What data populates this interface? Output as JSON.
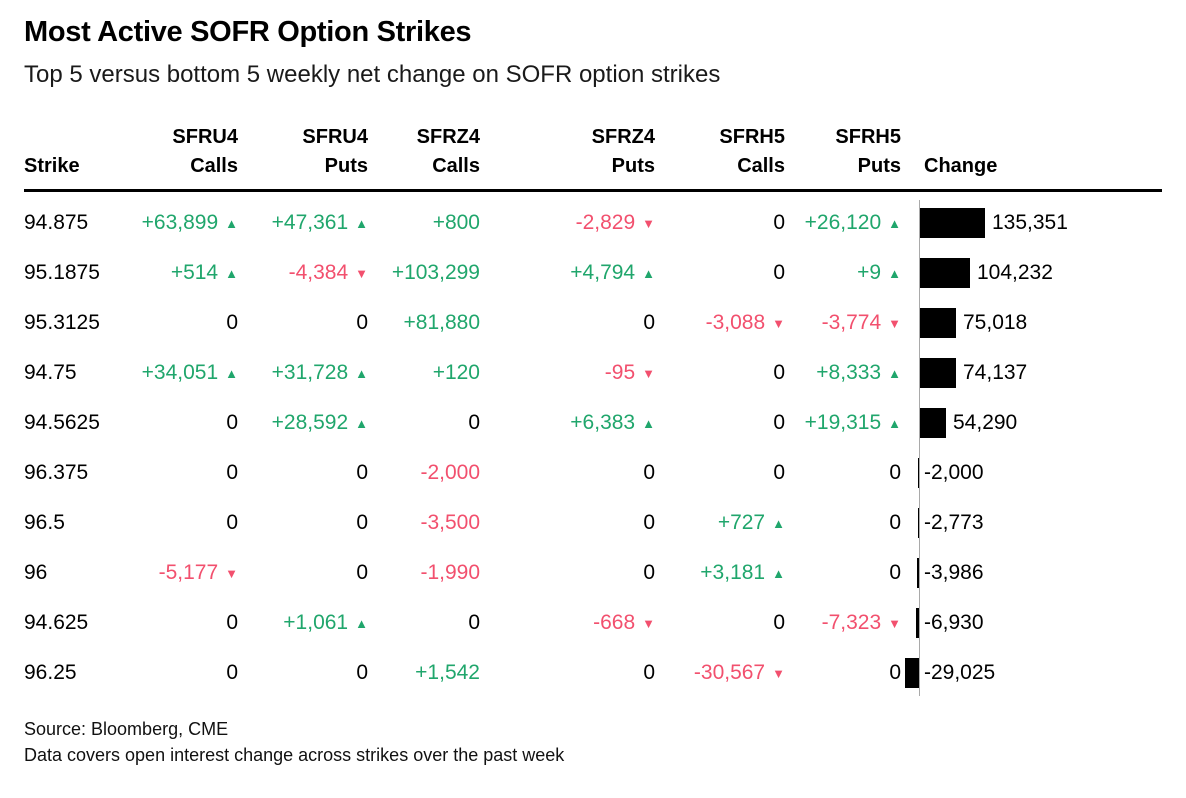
{
  "header": {
    "title": "Most Active SOFR Option Strikes",
    "subtitle": "Top 5 versus bottom 5 weekly net change on SOFR option strikes"
  },
  "table": {
    "columns": [
      {
        "top": "",
        "bottom": "Strike"
      },
      {
        "top": "SFRU4",
        "bottom": "Calls"
      },
      {
        "top": "SFRU4",
        "bottom": "Puts"
      },
      {
        "top": "SFRZ4",
        "bottom": "Calls"
      },
      {
        "top": "SFRZ4",
        "bottom": "Puts"
      },
      {
        "top": "SFRH5",
        "bottom": "Calls"
      },
      {
        "top": "SFRH5",
        "bottom": "Puts"
      },
      {
        "top": "",
        "bottom": "Change"
      }
    ],
    "rows": [
      {
        "strike": "94.875",
        "values": [
          {
            "t": "+63,899",
            "a": "up"
          },
          {
            "t": "+47,361",
            "a": "up"
          },
          {
            "t": "+800",
            "a": "none"
          },
          {
            "t": "-2,829",
            "a": "down"
          },
          {
            "t": "0",
            "a": "none"
          },
          {
            "t": "+26,120",
            "a": "up"
          }
        ],
        "change": 135351,
        "change_label": "135,351"
      },
      {
        "strike": "95.1875",
        "values": [
          {
            "t": "+514",
            "a": "up"
          },
          {
            "t": "-4,384",
            "a": "down"
          },
          {
            "t": "+103,299",
            "a": "none"
          },
          {
            "t": "+4,794",
            "a": "up"
          },
          {
            "t": "0",
            "a": "none"
          },
          {
            "t": "+9",
            "a": "up"
          }
        ],
        "change": 104232,
        "change_label": "104,232"
      },
      {
        "strike": "95.3125",
        "values": [
          {
            "t": "0",
            "a": "none"
          },
          {
            "t": "0",
            "a": "none"
          },
          {
            "t": "+81,880",
            "a": "none"
          },
          {
            "t": "0",
            "a": "none"
          },
          {
            "t": "-3,088",
            "a": "down"
          },
          {
            "t": "-3,774",
            "a": "down"
          }
        ],
        "change": 75018,
        "change_label": "75,018"
      },
      {
        "strike": "94.75",
        "values": [
          {
            "t": "+34,051",
            "a": "up"
          },
          {
            "t": "+31,728",
            "a": "up"
          },
          {
            "t": "+120",
            "a": "none"
          },
          {
            "t": "-95",
            "a": "down"
          },
          {
            "t": "0",
            "a": "none"
          },
          {
            "t": "+8,333",
            "a": "up"
          }
        ],
        "change": 74137,
        "change_label": "74,137"
      },
      {
        "strike": "94.5625",
        "values": [
          {
            "t": "0",
            "a": "none"
          },
          {
            "t": "+28,592",
            "a": "up"
          },
          {
            "t": "0",
            "a": "none"
          },
          {
            "t": "+6,383",
            "a": "up"
          },
          {
            "t": "0",
            "a": "none"
          },
          {
            "t": "+19,315",
            "a": "up"
          }
        ],
        "change": 54290,
        "change_label": "54,290"
      },
      {
        "strike": "96.375",
        "values": [
          {
            "t": "0",
            "a": "none"
          },
          {
            "t": "0",
            "a": "none"
          },
          {
            "t": "-2,000",
            "a": "none"
          },
          {
            "t": "0",
            "a": "none"
          },
          {
            "t": "0",
            "a": "none"
          },
          {
            "t": "0",
            "a": "none"
          }
        ],
        "change": -2000,
        "change_label": "-2,000"
      },
      {
        "strike": "96.5",
        "values": [
          {
            "t": "0",
            "a": "none"
          },
          {
            "t": "0",
            "a": "none"
          },
          {
            "t": "-3,500",
            "a": "none"
          },
          {
            "t": "0",
            "a": "none"
          },
          {
            "t": "+727",
            "a": "up"
          },
          {
            "t": "0",
            "a": "none"
          }
        ],
        "change": -2773,
        "change_label": "-2,773"
      },
      {
        "strike": "96",
        "values": [
          {
            "t": "-5,177",
            "a": "down"
          },
          {
            "t": "0",
            "a": "none"
          },
          {
            "t": "-1,990",
            "a": "none"
          },
          {
            "t": "0",
            "a": "none"
          },
          {
            "t": "+3,181",
            "a": "up"
          },
          {
            "t": "0",
            "a": "none"
          }
        ],
        "change": -3986,
        "change_label": "-3,986"
      },
      {
        "strike": "94.625",
        "values": [
          {
            "t": "0",
            "a": "none"
          },
          {
            "t": "+1,061",
            "a": "up"
          },
          {
            "t": "0",
            "a": "none"
          },
          {
            "t": "-668",
            "a": "down"
          },
          {
            "t": "0",
            "a": "none"
          },
          {
            "t": "-7,323",
            "a": "down"
          }
        ],
        "change": -6930,
        "change_label": "-6,930"
      },
      {
        "strike": "96.25",
        "values": [
          {
            "t": "0",
            "a": "none"
          },
          {
            "t": "0",
            "a": "none"
          },
          {
            "t": "+1,542",
            "a": "none"
          },
          {
            "t": "0",
            "a": "none"
          },
          {
            "t": "-30,567",
            "a": "down"
          },
          {
            "t": "0",
            "a": "none"
          }
        ],
        "change": -29025,
        "change_label": "-29,025"
      }
    ]
  },
  "chart_data": {
    "type": "table",
    "title": "Most Active SOFR Option Strikes",
    "subtitle": "Top 5 versus bottom 5 weekly net change on SOFR option strikes",
    "columns": [
      "Strike",
      "SFRU4 Calls",
      "SFRU4 Puts",
      "SFRZ4 Calls",
      "SFRZ4 Puts",
      "SFRH5 Calls",
      "SFRH5 Puts",
      "Change"
    ],
    "rows": [
      [
        "94.875",
        63899,
        47361,
        800,
        -2829,
        0,
        26120,
        135351
      ],
      [
        "95.1875",
        514,
        -4384,
        103299,
        4794,
        0,
        9,
        104232
      ],
      [
        "95.3125",
        0,
        0,
        81880,
        0,
        -3088,
        -3774,
        75018
      ],
      [
        "94.75",
        34051,
        31728,
        120,
        -95,
        0,
        8333,
        74137
      ],
      [
        "94.5625",
        0,
        28592,
        0,
        6383,
        0,
        19315,
        54290
      ],
      [
        "96.375",
        0,
        0,
        -2000,
        0,
        0,
        0,
        -2000
      ],
      [
        "96.5",
        0,
        0,
        -3500,
        0,
        727,
        0,
        -2773
      ],
      [
        "96",
        -5177,
        0,
        -1990,
        0,
        3181,
        0,
        -3986
      ],
      [
        "94.625",
        0,
        1061,
        0,
        -668,
        0,
        -7323,
        -6930
      ],
      [
        "96.25",
        0,
        0,
        1542,
        0,
        -30567,
        0,
        -29025
      ]
    ],
    "bar_column": "Change",
    "bar_scale_max": 135351,
    "legend": "none",
    "source": "Source: Bloomberg, CME"
  },
  "footer": {
    "source": "Source: Bloomberg, CME",
    "note": "Data covers open interest change across strikes over the past week"
  },
  "colors": {
    "green": "#20a66c",
    "red": "#f2506e",
    "bar": "#000000",
    "baseline": "#a9a9a9"
  }
}
